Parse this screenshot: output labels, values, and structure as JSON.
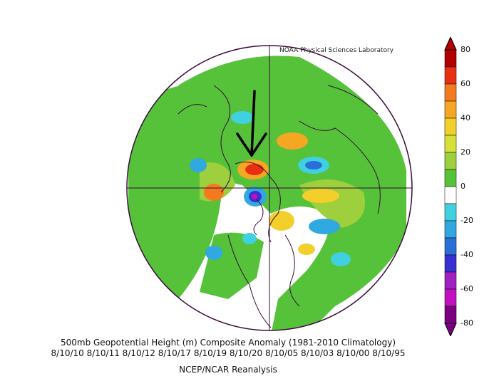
{
  "credit": "NOAA Physical Sciences Laboratory",
  "title": "500mb Geopotential Height (m) Composite Anomaly (1981-2010 Climatology)",
  "dates": "8/10/10 8/10/11 8/10/12 8/10/17 8/10/19 8/10/20 8/10/05 8/10/03 8/10/00 8/10/95",
  "source": "NCEP/NCAR Reanalysis",
  "colorbar": {
    "tick_labels": [
      "80",
      "60",
      "40",
      "20",
      "0",
      "-20",
      "-40",
      "-60",
      "-80"
    ],
    "colors": [
      "#b00000",
      "#e83010",
      "#f47a20",
      "#f5a623",
      "#f2cf2a",
      "#d7e03a",
      "#9ecf3c",
      "#55c23a",
      "#ffffff",
      "#40d0e0",
      "#30a8e0",
      "#2a6fd8",
      "#3a2fd0",
      "#a020c0",
      "#c010c0",
      "#7a0080"
    ]
  },
  "annotation": "black arrow pointing to positive anomaly over eastern North Atlantic / Europe"
}
